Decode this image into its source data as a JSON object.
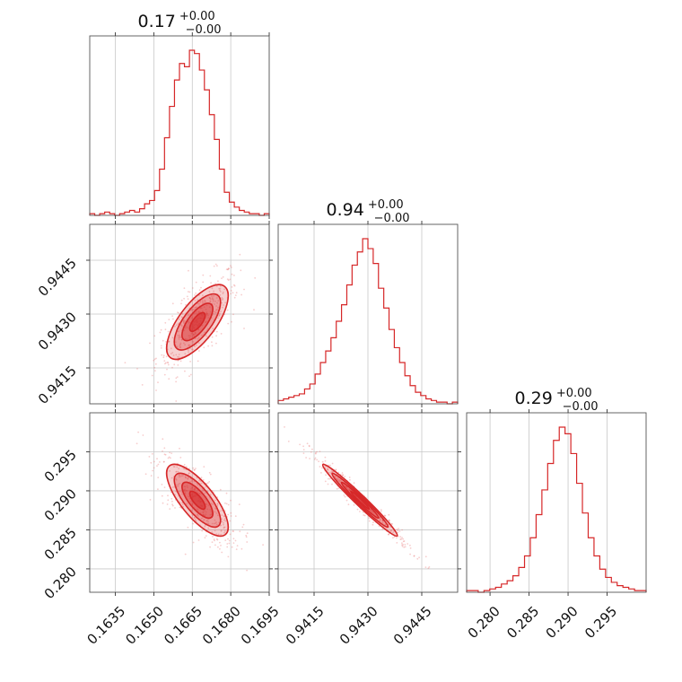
{
  "chart_data": {
    "type": "corner",
    "parameters": [
      {
        "title_value": "0.17",
        "title_plus": "+0.00",
        "title_minus": "−0.00",
        "median": 0.1667,
        "sigma": 0.0006,
        "range": [
          0.1625,
          0.1695
        ],
        "ticks": [
          0.1635,
          0.165,
          0.1665,
          0.168,
          0.1695
        ],
        "tick_labels": [
          "0.1635",
          "0.1650",
          "0.1665",
          "0.1680",
          "0.1695"
        ],
        "hist_counts": [
          1,
          0,
          1,
          2,
          1,
          0,
          1,
          2,
          3,
          2,
          4,
          7,
          9,
          15,
          28,
          47,
          66,
          82,
          92,
          90,
          100,
          98,
          88,
          76,
          61,
          46,
          28,
          14,
          8,
          5,
          3,
          2,
          1,
          1,
          0,
          1
        ]
      },
      {
        "title_value": "0.94",
        "title_plus": "+0.00",
        "title_minus": "−0.00",
        "median": 0.94278,
        "sigma": 0.00052,
        "range": [
          0.9405,
          0.9455
        ],
        "ticks": [
          0.9415,
          0.943,
          0.9445
        ],
        "tick_labels": [
          "0.9415",
          "0.9430",
          "0.9445"
        ],
        "hist_counts": [
          2,
          3,
          4,
          5,
          6,
          9,
          12,
          18,
          25,
          32,
          40,
          50,
          60,
          72,
          84,
          92,
          100,
          94,
          85,
          70,
          58,
          45,
          34,
          25,
          17,
          11,
          7,
          5,
          3,
          2,
          1,
          1,
          0,
          1
        ]
      },
      {
        "title_value": "0.29",
        "title_plus": "+0.00",
        "title_minus": "−0.00",
        "median": 0.2888,
        "sigma": 0.0023,
        "range": [
          0.277,
          0.3
        ],
        "ticks": [
          0.28,
          0.285,
          0.29,
          0.295
        ],
        "tick_labels": [
          "0.280",
          "0.285",
          "0.290",
          "0.295"
        ],
        "hist_counts": [
          1,
          1,
          0,
          1,
          2,
          3,
          5,
          7,
          10,
          15,
          22,
          33,
          47,
          62,
          78,
          92,
          100,
          96,
          84,
          66,
          48,
          33,
          22,
          14,
          9,
          6,
          4,
          3,
          2,
          1,
          1
        ]
      }
    ],
    "correlations": {
      "1-0": 0.7,
      "2-0": -0.75,
      "2-1": -0.98
    },
    "color": "#d62728",
    "grid": true,
    "legend": "none"
  }
}
